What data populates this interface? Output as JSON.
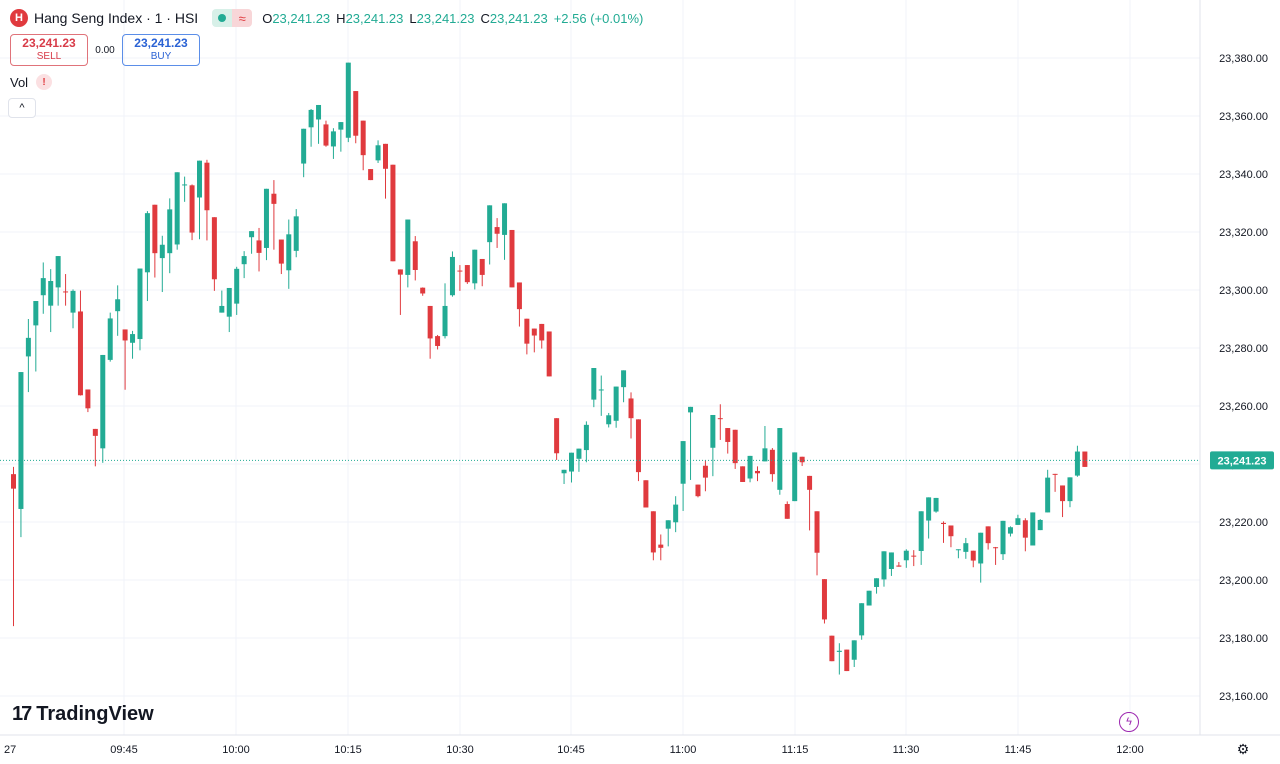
{
  "header": {
    "symbol_letter": "H",
    "title": "Hang Seng Index · 1 · HSI",
    "ohlc": [
      {
        "k": "O",
        "v": "23,241.23"
      },
      {
        "k": "H",
        "v": "23,241.23"
      },
      {
        "k": "L",
        "v": "23,241.23"
      },
      {
        "k": "C",
        "v": "23,241.23"
      }
    ],
    "change": "+2.56 (+0.01%)"
  },
  "trade": {
    "sell_price": "23,241.23",
    "sell_label": "SELL",
    "spread": "0.00",
    "buy_price": "23,241.23",
    "buy_label": "BUY"
  },
  "volume": {
    "label": "Vol",
    "warning_icon": "!"
  },
  "brand": {
    "mark": "17",
    "name": "TradingView"
  },
  "colors": {
    "up": "#22ab94",
    "down": "#e03a3e",
    "grid": "#f0f3fa",
    "text": "#131722"
  },
  "icons": {
    "collapse": "chevron-up-icon",
    "flash": "lightning-icon",
    "settings": "gear-icon"
  },
  "chart_data": {
    "type": "candlestick",
    "title": "Hang Seng Index · 1 · HSI",
    "interval": "1 minute",
    "ylim": [
      23152,
      23392
    ],
    "price_ticks": [
      "23,380.00",
      "23,360.00",
      "23,340.00",
      "23,320.00",
      "23,300.00",
      "23,280.00",
      "23,260.00",
      "23,240.00",
      "23,220.00",
      "23,200.00",
      "23,180.00",
      "23,160.00"
    ],
    "time_ticks": [
      "27",
      "09:45",
      "10:00",
      "10:15",
      "10:30",
      "10:45",
      "11:00",
      "11:15",
      "11:30",
      "11:45",
      "12:00"
    ],
    "last_price": 23241.23,
    "last_price_label": "23,241.23",
    "candles": [
      [
        23236.5,
        23239,
        23184.1,
        23231.5
      ],
      [
        23224.5,
        23271.7,
        23214.8,
        23271.7
      ],
      [
        23277.1,
        23290,
        23264.8,
        23283.5
      ],
      [
        23287.8,
        23294.4,
        23271.9,
        23296.2
      ],
      [
        23298.2,
        23309.5,
        23291.8,
        23304.1
      ],
      [
        23294.6,
        23307.2,
        23285.5,
        23303.1
      ],
      [
        23300.9,
        23311.4,
        23294.6,
        23311.7
      ],
      [
        23299.5,
        23305.5,
        23294.6,
        23299.2
      ],
      [
        23292.2,
        23300.2,
        23286.8,
        23299.7
      ],
      [
        23292.6,
        23299.8,
        23263.6,
        23263.7
      ],
      [
        23265.7,
        23265.2,
        23257.9,
        23259.2
      ],
      [
        23252.1,
        23248.3,
        23239.2,
        23249.7
      ],
      [
        23245.4,
        23275.6,
        23240.4,
        23277.6
      ],
      [
        23275.9,
        23292.2,
        23275.3,
        23290.2
      ],
      [
        23292.7,
        23301.6,
        23284.2,
        23296.8
      ],
      [
        23286.4,
        23285.8,
        23265.6,
        23282.6
      ],
      [
        23281.8,
        23285.9,
        23276.3,
        23284.8
      ],
      [
        23283.1,
        23306.3,
        23279.2,
        23307.4
      ],
      [
        23306.1,
        23327.2,
        23296.2,
        23326.5
      ],
      [
        23329.4,
        23327.5,
        23304.3,
        23312.7
      ],
      [
        23311,
        23318.7,
        23299.3,
        23315.6
      ],
      [
        23312.7,
        23331.6,
        23305.8,
        23327.8
      ],
      [
        23315.7,
        23334.2,
        23313.9,
        23340.6
      ],
      [
        23336.3,
        23339.1,
        23330.4,
        23336.4
      ],
      [
        23336.1,
        23336.4,
        23317.2,
        23319.8
      ],
      [
        23331.9,
        23343.4,
        23317.5,
        23344.6
      ],
      [
        23343.9,
        23344.9,
        23317.1,
        23327.5
      ],
      [
        23325.1,
        23313.1,
        23299.7,
        23303.7
      ],
      [
        23292.2,
        23299.8,
        23292.7,
        23294.5
      ],
      [
        23290.8,
        23298.6,
        23285.5,
        23300.7
      ],
      [
        23295.3,
        23308,
        23291.4,
        23307.3
      ],
      [
        23308.9,
        23313.4,
        23304.1,
        23311.7
      ],
      [
        23318.2,
        23317.2,
        23312.5,
        23320.3
      ],
      [
        23317.1,
        23321.4,
        23306.4,
        23312.8
      ],
      [
        23314.5,
        23329.4,
        23310.3,
        23334.9
      ],
      [
        23333.2,
        23337.9,
        23313.9,
        23329.7
      ],
      [
        23317.4,
        23309.7,
        23305.5,
        23309.1
      ],
      [
        23306.8,
        23324.3,
        23300.4,
        23319.2
      ],
      [
        23313.5,
        23327.9,
        23311.3,
        23325.4
      ],
      [
        23343.6,
        23354.3,
        23338.9,
        23355.6
      ],
      [
        23356.1,
        23362.4,
        23349.4,
        23362.1
      ],
      [
        23358.8,
        23363.8,
        23350.4,
        23363.8
      ],
      [
        23357.1,
        23358.4,
        23349.4,
        23349.8
      ],
      [
        23349.5,
        23355.8,
        23345.2,
        23354.7
      ],
      [
        23355.3,
        23356.7,
        23347.7,
        23357.9
      ],
      [
        23352.5,
        23367.3,
        23351,
        23378.4
      ],
      [
        23368.6,
        23353,
        23350.6,
        23353.2
      ],
      [
        23358.4,
        23340.8,
        23341.3,
        23346.5
      ],
      [
        23341.7,
        23337.5,
        23339.9,
        23337.9
      ],
      [
        23344.7,
        23351.6,
        23343.8,
        23349.9
      ],
      [
        23350.4,
        23348.6,
        23331.5,
        23341.8
      ],
      [
        23343.2,
        23311.2,
        23312.9,
        23309.9
      ],
      [
        23307.1,
        23305.1,
        23291.4,
        23305.3
      ],
      [
        23305.2,
        23319.6,
        23300.9,
        23324.3
      ],
      [
        23316.8,
        23318.6,
        23303.3,
        23306.9
      ],
      [
        23300.8,
        23300.9,
        23298,
        23298.8
      ],
      [
        23294.5,
        23280,
        23276.3,
        23283.3
      ],
      [
        23284.1,
        23284.5,
        23279.5,
        23280.7
      ],
      [
        23284.1,
        23302.3,
        23283.3,
        23294.5
      ],
      [
        23298.2,
        23313.3,
        23297.7,
        23311.4
      ],
      [
        23306.7,
        23308.6,
        23299.7,
        23306.5
      ],
      [
        23308.6,
        23304.6,
        23302.1,
        23302.7
      ],
      [
        23302.3,
        23312.3,
        23300.2,
        23313.9
      ],
      [
        23310.7,
        23304.9,
        23301.3,
        23305.2
      ],
      [
        23316.5,
        23327.8,
        23308.8,
        23329.2
      ],
      [
        23321.7,
        23324.8,
        23314.5,
        23319.4
      ],
      [
        23319,
        23322.2,
        23310.4,
        23329.9
      ],
      [
        23320.7,
        23317.8,
        23301.2,
        23300.9
      ],
      [
        23302.6,
        23301.2,
        23287.4,
        23293.4
      ],
      [
        23290.1,
        23284.4,
        23277.8,
        23281.5
      ],
      [
        23286.7,
        23281.3,
        23278.5,
        23284.3
      ],
      [
        23288.3,
        23283.3,
        23279.8,
        23282.6
      ],
      [
        23285.7,
        23264.1,
        23270.3,
        23270.2
      ],
      [
        23255.8,
        23253.1,
        23241.4,
        23243.7
      ],
      [
        23236.8,
        23230.5,
        23233.1,
        23238
      ],
      [
        23237.4,
        23242.4,
        23233.6,
        23243.9
      ],
      [
        23241.8,
        23243.4,
        23237.3,
        23245.3
      ],
      [
        23244.8,
        23254.7,
        23240.6,
        23253.5
      ],
      [
        23262.2,
        23272.3,
        23259.6,
        23273.1
      ],
      [
        23265.6,
        23270.5,
        23256.6,
        23265.7
      ],
      [
        23253.7,
        23257.6,
        23252.6,
        23256.8
      ],
      [
        23254.9,
        23264.6,
        23252.5,
        23266.7
      ],
      [
        23266.5,
        23270.7,
        23261.3,
        23272.3
      ],
      [
        23262.6,
        23264.7,
        23248.8,
        23255.8
      ],
      [
        23255.4,
        23241.3,
        23234.1,
        23237.2
      ],
      [
        23234.4,
        23227.4,
        23228.7,
        23225
      ],
      [
        23223.7,
        23208.9,
        23206.8,
        23209.5
      ],
      [
        23212.2,
        23215.7,
        23206.8,
        23211.1
      ],
      [
        23217.7,
        23220.2,
        23211.6,
        23220.6
      ],
      [
        23219.9,
        23228.9,
        23216.5,
        23226
      ],
      [
        23233.2,
        23246.4,
        23223.8,
        23247.9
      ],
      [
        23257.8,
        23255.4,
        23234.5,
        23259.7
      ],
      [
        23232.9,
        23230.7,
        23228.5,
        23228.9
      ],
      [
        23239.4,
        23241.3,
        23230.6,
        23235.3
      ],
      [
        23245.6,
        23255.4,
        23235.8,
        23256.9
      ],
      [
        23255.8,
        23260.6,
        23248.3,
        23255.6
      ],
      [
        23252.4,
        23250.2,
        23243.6,
        23247.6
      ],
      [
        23251.8,
        23250.3,
        23238.3,
        23240.3
      ],
      [
        23239.2,
        23238.2,
        23234.8,
        23233.8
      ],
      [
        23235,
        23242.7,
        23233.7,
        23242.8
      ],
      [
        23237.6,
        23239.2,
        23234.1,
        23236.8
      ],
      [
        23240.9,
        23253.1,
        23242.5,
        23245.4
      ],
      [
        23244.9,
        23245.5,
        23233.9,
        23236.5
      ],
      [
        23231.1,
        23244.8,
        23229.4,
        23252.4
      ],
      [
        23226.2,
        23227.1,
        23227,
        23221.1
      ],
      [
        23227.2,
        23238.6,
        23229.4,
        23244
      ],
      [
        23242.5,
        23237.7,
        23239.3,
        23240.6
      ],
      [
        23235.9,
        23227.3,
        23217.1,
        23231.1
      ],
      [
        23223.7,
        23210.8,
        23201.6,
        23209.4
      ],
      [
        23200.3,
        23186.7,
        23185,
        23186.4
      ],
      [
        23180.8,
        23170.3,
        23172.6,
        23172
      ],
      [
        23175.2,
        23178.2,
        23167.4,
        23175.6
      ],
      [
        23176,
        23172.4,
        23169.3,
        23168.6
      ],
      [
        23172.5,
        23178.6,
        23170,
        23179.2
      ],
      [
        23180.9,
        23190.4,
        23179.4,
        23192
      ],
      [
        23191.2,
        23196.2,
        23191.7,
        23196.3
      ],
      [
        23197.6,
        23200,
        23195.3,
        23200.6
      ],
      [
        23200.2,
        23205.5,
        23197.7,
        23209.9
      ],
      [
        23203.8,
        23206.2,
        23201.4,
        23209.5
      ],
      [
        23205,
        23206.2,
        23205.7,
        23204.6
      ],
      [
        23206.8,
        23210.6,
        23204.2,
        23210.1
      ],
      [
        23208.4,
        23210.3,
        23204.8,
        23208.1
      ],
      [
        23210,
        23221.4,
        23205.2,
        23223.7
      ],
      [
        23220.5,
        23222.6,
        23214.3,
        23228.5
      ],
      [
        23223.6,
        23226.5,
        23223.2,
        23228.3
      ],
      [
        23219.7,
        23220.2,
        23212.8,
        23219.3
      ],
      [
        23218.8,
        23217,
        23211.3,
        23215.1
      ],
      [
        23210.4,
        23210.3,
        23207.5,
        23210.6
      ],
      [
        23209.7,
        23214.5,
        23207.3,
        23212.7
      ],
      [
        23210.1,
        23209.8,
        23204.4,
        23206.7
      ],
      [
        23205.7,
        23212.7,
        23199.1,
        23216.3
      ],
      [
        23218.5,
        23215.6,
        23210.5,
        23212.7
      ],
      [
        23211.3,
        23211.4,
        23205.2,
        23211.2
      ],
      [
        23208.9,
        23216.4,
        23206.9,
        23220.4
      ],
      [
        23216,
        23218.5,
        23215,
        23218.2
      ],
      [
        23219,
        23222.5,
        23219.6,
        23221.3
      ],
      [
        23220.6,
        23221.3,
        23209.9,
        23214.6
      ],
      [
        23211.9,
        23222.4,
        23213.3,
        23223.3
      ],
      [
        23217.2,
        23221,
        23220.3,
        23220.7
      ],
      [
        23223.3,
        23238,
        23223.9,
        23235.3
      ],
      [
        23236.6,
        23231.5,
        23230.4,
        23236.5
      ],
      [
        23232.6,
        23229.3,
        23221.7,
        23227.2
      ],
      [
        23227.2,
        23232.9,
        23225.1,
        23235.4
      ],
      [
        23236,
        23246.3,
        23235.6,
        23244.3
      ],
      [
        23244.3,
        23241.2,
        23239.2,
        23239
      ]
    ]
  }
}
